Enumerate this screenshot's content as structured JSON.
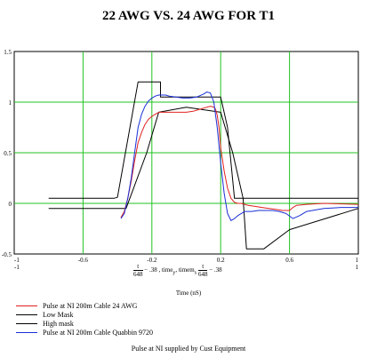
{
  "chart_data": {
    "type": "line",
    "title": "22 AWG VS. 24 AWG FOR T1",
    "xlabel": "Time (nS)",
    "x_expression": {
      "frac_top": "t",
      "frac_bot": "648",
      "mid": "− .38 , time",
      "sub": "y",
      "mid2": ", timem",
      "sub2": "s",
      "tail": "− .38"
    },
    "xlim": [
      -1,
      1
    ],
    "ylim": [
      -0.5,
      1.5
    ],
    "xticks": [
      "-1",
      "-0.6",
      "-0.2",
      "0.2",
      "0.6",
      "1"
    ],
    "xticks_values": [
      -1,
      -0.6,
      -0.2,
      0.2,
      0.6,
      1
    ],
    "xbound_labels": [
      "-1",
      "1"
    ],
    "yticks": [
      "1.5",
      "1",
      "0.5",
      "0",
      "-0.5"
    ],
    "yticks_values": [
      1.5,
      1,
      0.5,
      0,
      -0.5
    ],
    "grid": true,
    "legend_position": "bottom-left",
    "caption": "Pulse at NI supplied by Cust Equipment",
    "series": [
      {
        "name": "Pulse at NI 200m Cable 24 AWG",
        "color": "#e02020",
        "x": [
          -0.38,
          -0.36,
          -0.34,
          -0.32,
          -0.3,
          -0.28,
          -0.26,
          -0.24,
          -0.22,
          -0.2,
          -0.18,
          -0.16,
          -0.12,
          -0.08,
          -0.04,
          0.0,
          0.04,
          0.08,
          0.12,
          0.14,
          0.16,
          0.17,
          0.18,
          0.19,
          0.2,
          0.22,
          0.24,
          0.26,
          0.28,
          0.3,
          0.32,
          0.34,
          0.36,
          0.4,
          0.44,
          0.48,
          0.52,
          0.56,
          0.6,
          0.62,
          0.64,
          0.7,
          0.8,
          1.0
        ],
        "y": [
          -0.14,
          -0.08,
          0.05,
          0.22,
          0.42,
          0.6,
          0.7,
          0.78,
          0.83,
          0.86,
          0.88,
          0.9,
          0.9,
          0.9,
          0.9,
          0.9,
          0.91,
          0.93,
          0.95,
          0.96,
          0.95,
          0.93,
          0.87,
          0.75,
          0.55,
          0.32,
          0.15,
          0.05,
          0.01,
          0.0,
          0.0,
          -0.01,
          -0.02,
          -0.03,
          -0.04,
          -0.05,
          -0.06,
          -0.07,
          -0.07,
          -0.04,
          -0.02,
          -0.01,
          0.0,
          -0.01
        ]
      },
      {
        "name": "Low Mask",
        "color": "#000000",
        "x": [
          -0.8,
          -0.35,
          -0.23,
          -0.16,
          0.0,
          0.2,
          0.27,
          0.33,
          0.35,
          0.45,
          0.6,
          1.0
        ],
        "y": [
          -0.05,
          -0.05,
          0.5,
          0.9,
          0.95,
          0.9,
          0.5,
          0.05,
          -0.45,
          -0.45,
          -0.26,
          -0.05
        ]
      },
      {
        "name": "High mask",
        "color": "#000000",
        "x": [
          -0.8,
          -0.42,
          -0.4,
          -0.28,
          -0.15,
          -0.15,
          0.15,
          0.15,
          0.18,
          0.2,
          0.24,
          0.28,
          0.3,
          1.0
        ],
        "y": [
          0.05,
          0.05,
          0.06,
          1.2,
          1.2,
          1.05,
          1.05,
          1.05,
          1.05,
          1.05,
          0.75,
          0.05,
          0.05,
          0.05
        ]
      },
      {
        "name": "Pulse at NI 200m Cable Quabbin 9720",
        "color": "#1a2fd6",
        "x": [
          -0.38,
          -0.36,
          -0.34,
          -0.32,
          -0.3,
          -0.28,
          -0.26,
          -0.24,
          -0.22,
          -0.2,
          -0.18,
          -0.16,
          -0.14,
          -0.12,
          -0.1,
          -0.06,
          -0.02,
          0.02,
          0.06,
          0.1,
          0.12,
          0.14,
          0.16,
          0.18,
          0.2,
          0.22,
          0.24,
          0.26,
          0.28,
          0.3,
          0.32,
          0.34,
          0.38,
          0.42,
          0.46,
          0.5,
          0.54,
          0.58,
          0.62,
          0.66,
          0.7,
          0.8,
          0.9,
          1.0
        ],
        "y": [
          -0.15,
          -0.1,
          0.05,
          0.25,
          0.5,
          0.75,
          0.88,
          0.96,
          1.01,
          1.04,
          1.06,
          1.07,
          1.07,
          1.07,
          1.06,
          1.05,
          1.04,
          1.04,
          1.05,
          1.08,
          1.1,
          1.09,
          1.0,
          0.75,
          0.4,
          0.1,
          -0.1,
          -0.17,
          -0.15,
          -0.12,
          -0.1,
          -0.08,
          -0.08,
          -0.07,
          -0.07,
          -0.07,
          -0.08,
          -0.1,
          -0.15,
          -0.12,
          -0.08,
          -0.05,
          -0.04,
          -0.04
        ]
      }
    ]
  }
}
